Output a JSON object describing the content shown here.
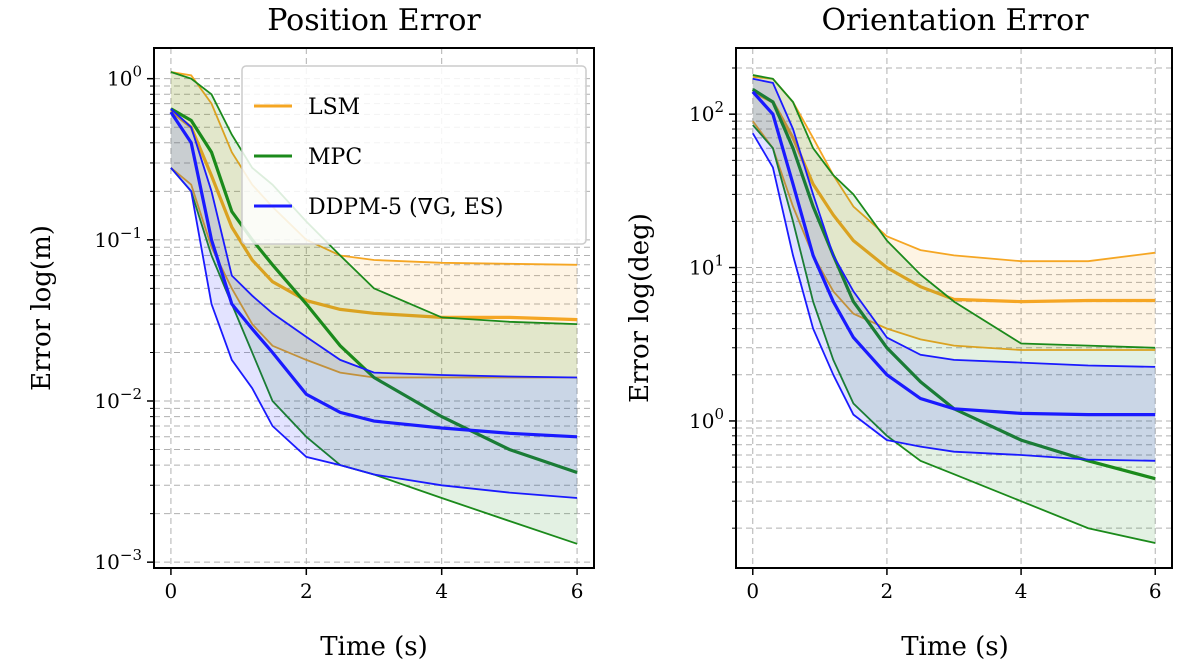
{
  "chart_data": [
    {
      "type": "line",
      "title": "Position Error",
      "xlabel": "Time (s)",
      "ylabel": "Error log(m)",
      "yscale": "log",
      "xlim": [
        -0.25,
        6.25
      ],
      "ylim": [
        0.00092,
        1.55
      ],
      "xticks": [
        0,
        2,
        4,
        6
      ],
      "yticks": [
        {
          "value": 1,
          "base": "10",
          "exp": "0"
        },
        {
          "value": 0.1,
          "base": "10",
          "exp": "−1"
        },
        {
          "value": 0.01,
          "base": "10",
          "exp": "−2"
        },
        {
          "value": 0.001,
          "base": "10",
          "exp": "−3"
        }
      ],
      "grid": true,
      "legend": {
        "position": "top-right",
        "entries": [
          {
            "label": "LSM",
            "color": "#f5a623"
          },
          {
            "label": "MPC",
            "color": "#1b8a1b"
          },
          {
            "label": "DDPM-5 (∇G, ES)",
            "color": "#1a1aff"
          }
        ]
      },
      "series": [
        {
          "name": "LSM",
          "color": "#f5a623",
          "x": [
            0,
            0.3,
            0.6,
            0.9,
            1.2,
            1.5,
            2.0,
            2.5,
            3.0,
            4.0,
            5.0,
            6.0
          ],
          "median": [
            0.63,
            0.5,
            0.25,
            0.12,
            0.075,
            0.055,
            0.042,
            0.037,
            0.035,
            0.033,
            0.033,
            0.032
          ],
          "upper": [
            1.1,
            1.05,
            0.7,
            0.35,
            0.22,
            0.16,
            0.1,
            0.08,
            0.075,
            0.072,
            0.071,
            0.07
          ],
          "lower": [
            0.28,
            0.22,
            0.09,
            0.05,
            0.03,
            0.022,
            0.018,
            0.015,
            0.014,
            0.014,
            0.014,
            0.014
          ]
        },
        {
          "name": "MPC",
          "color": "#1b8a1b",
          "x": [
            0,
            0.3,
            0.6,
            0.9,
            1.2,
            1.5,
            2.0,
            2.5,
            3.0,
            4.0,
            5.0,
            6.0
          ],
          "median": [
            0.65,
            0.55,
            0.35,
            0.15,
            0.1,
            0.07,
            0.04,
            0.022,
            0.014,
            0.008,
            0.005,
            0.0036
          ],
          "upper": [
            1.1,
            1.0,
            0.8,
            0.45,
            0.28,
            0.22,
            0.13,
            0.08,
            0.05,
            0.033,
            0.031,
            0.03
          ],
          "lower": [
            0.28,
            0.2,
            0.08,
            0.04,
            0.02,
            0.01,
            0.006,
            0.004,
            0.0035,
            0.0025,
            0.0018,
            0.0013
          ]
        },
        {
          "name": "DDPM-5 (∇G, ES)",
          "color": "#1a1aff",
          "x": [
            0,
            0.3,
            0.6,
            0.9,
            1.2,
            1.5,
            2.0,
            2.5,
            3.0,
            4.0,
            5.0,
            6.0
          ],
          "median": [
            0.62,
            0.4,
            0.1,
            0.04,
            0.028,
            0.02,
            0.011,
            0.0085,
            0.0075,
            0.0068,
            0.0063,
            0.006
          ],
          "upper": [
            0.65,
            0.5,
            0.2,
            0.06,
            0.045,
            0.035,
            0.025,
            0.018,
            0.015,
            0.0145,
            0.0142,
            0.014
          ],
          "lower": [
            0.28,
            0.2,
            0.04,
            0.018,
            0.012,
            0.007,
            0.0045,
            0.004,
            0.0035,
            0.003,
            0.0027,
            0.0025
          ]
        }
      ]
    },
    {
      "type": "line",
      "title": "Orientation Error",
      "xlabel": "Time (s)",
      "ylabel": "Error log(deg)",
      "yscale": "log",
      "xlim": [
        -0.25,
        6.25
      ],
      "ylim": [
        0.11,
        270
      ],
      "xticks": [
        0,
        2,
        4,
        6
      ],
      "yticks": [
        {
          "value": 100,
          "base": "10",
          "exp": "2"
        },
        {
          "value": 10,
          "base": "10",
          "exp": "1"
        },
        {
          "value": 1,
          "base": "10",
          "exp": "0"
        }
      ],
      "grid": true,
      "legend": null,
      "series": [
        {
          "name": "LSM",
          "color": "#f5a623",
          "x": [
            0,
            0.3,
            0.6,
            0.9,
            1.2,
            1.5,
            2.0,
            2.5,
            3.0,
            4.0,
            5.0,
            6.0
          ],
          "median": [
            140,
            120,
            70,
            35,
            22,
            15,
            10,
            7.5,
            6.2,
            6.0,
            6.1,
            6.1
          ],
          "upper": [
            175,
            170,
            120,
            70,
            40,
            25,
            16,
            13,
            12,
            11,
            11,
            12.5
          ],
          "lower": [
            90,
            60,
            25,
            12,
            7,
            5,
            4,
            3.4,
            3.1,
            2.9,
            2.9,
            2.9
          ]
        },
        {
          "name": "MPC",
          "color": "#1b8a1b",
          "x": [
            0,
            0.3,
            0.6,
            0.9,
            1.2,
            1.5,
            2.0,
            2.5,
            3.0,
            4.0,
            5.0,
            6.0
          ],
          "median": [
            145,
            120,
            60,
            25,
            12,
            6,
            3,
            1.8,
            1.2,
            0.75,
            0.55,
            0.42
          ],
          "upper": [
            180,
            170,
            120,
            60,
            40,
            30,
            15,
            9,
            6,
            3.2,
            3.1,
            3.0
          ],
          "lower": [
            85,
            60,
            20,
            6,
            2.5,
            1.3,
            0.8,
            0.55,
            0.45,
            0.3,
            0.2,
            0.16
          ]
        },
        {
          "name": "DDPM-5 (∇G, ES)",
          "color": "#1a1aff",
          "x": [
            0,
            0.3,
            0.6,
            0.9,
            1.2,
            1.5,
            2.0,
            2.5,
            3.0,
            4.0,
            5.0,
            6.0
          ],
          "median": [
            140,
            100,
            35,
            12,
            6,
            3.5,
            2.0,
            1.4,
            1.2,
            1.12,
            1.1,
            1.1
          ],
          "upper": [
            170,
            160,
            80,
            30,
            12,
            7,
            3.5,
            2.7,
            2.5,
            2.4,
            2.3,
            2.25
          ],
          "lower": [
            75,
            45,
            12,
            4,
            2,
            1.1,
            0.75,
            0.68,
            0.63,
            0.6,
            0.56,
            0.55
          ]
        }
      ]
    }
  ]
}
